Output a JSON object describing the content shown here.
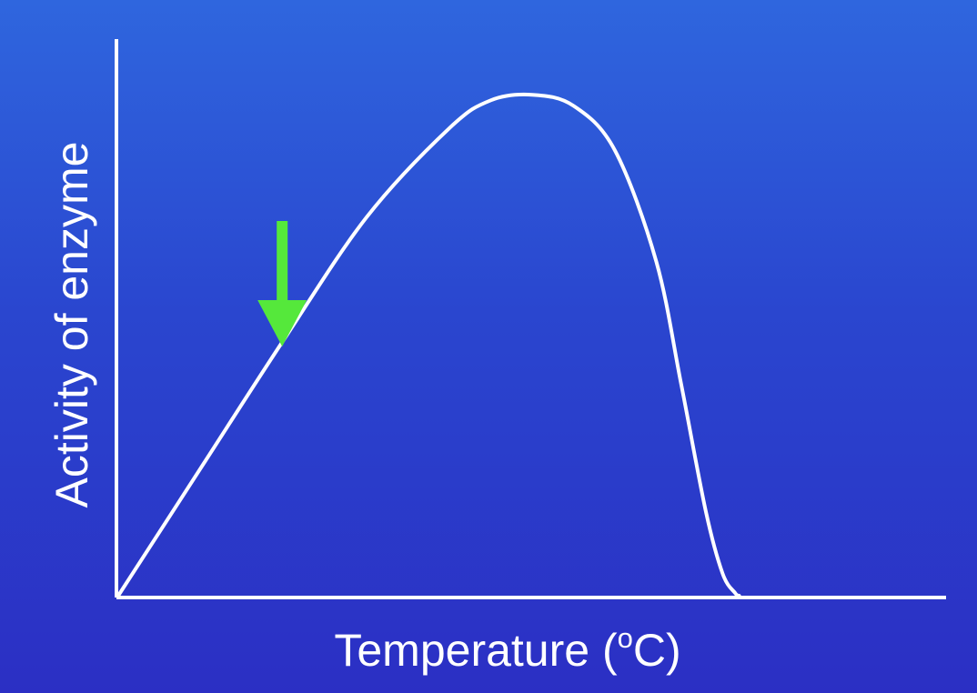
{
  "chart_data": {
    "type": "line",
    "title": "",
    "xlabel": "Temperature (oC)",
    "xlabel_main": "Temperature (",
    "xlabel_superscript": "o",
    "xlabel_unit": "C)",
    "ylabel": "Activity of enzyme",
    "xlim": [
      0,
      100
    ],
    "ylim": [
      0,
      100
    ],
    "show_ticks": false,
    "grid": false,
    "series": [
      {
        "x": [
          0,
          10,
          20,
          30,
          40,
          45,
          50,
          55,
          60,
          65,
          68,
          71,
          73,
          74.5,
          75
        ],
        "y": [
          0,
          23,
          46,
          68,
          84,
          89,
          90,
          88,
          80,
          60,
          38,
          15,
          4,
          0.5,
          0
        ]
      }
    ],
    "annotation": {
      "type": "arrow",
      "target_x": 19.8,
      "color": "#55e83b"
    },
    "colors": {
      "line": "#ffffff",
      "axes": "#ffffff",
      "arrow": "#55e83b"
    }
  }
}
